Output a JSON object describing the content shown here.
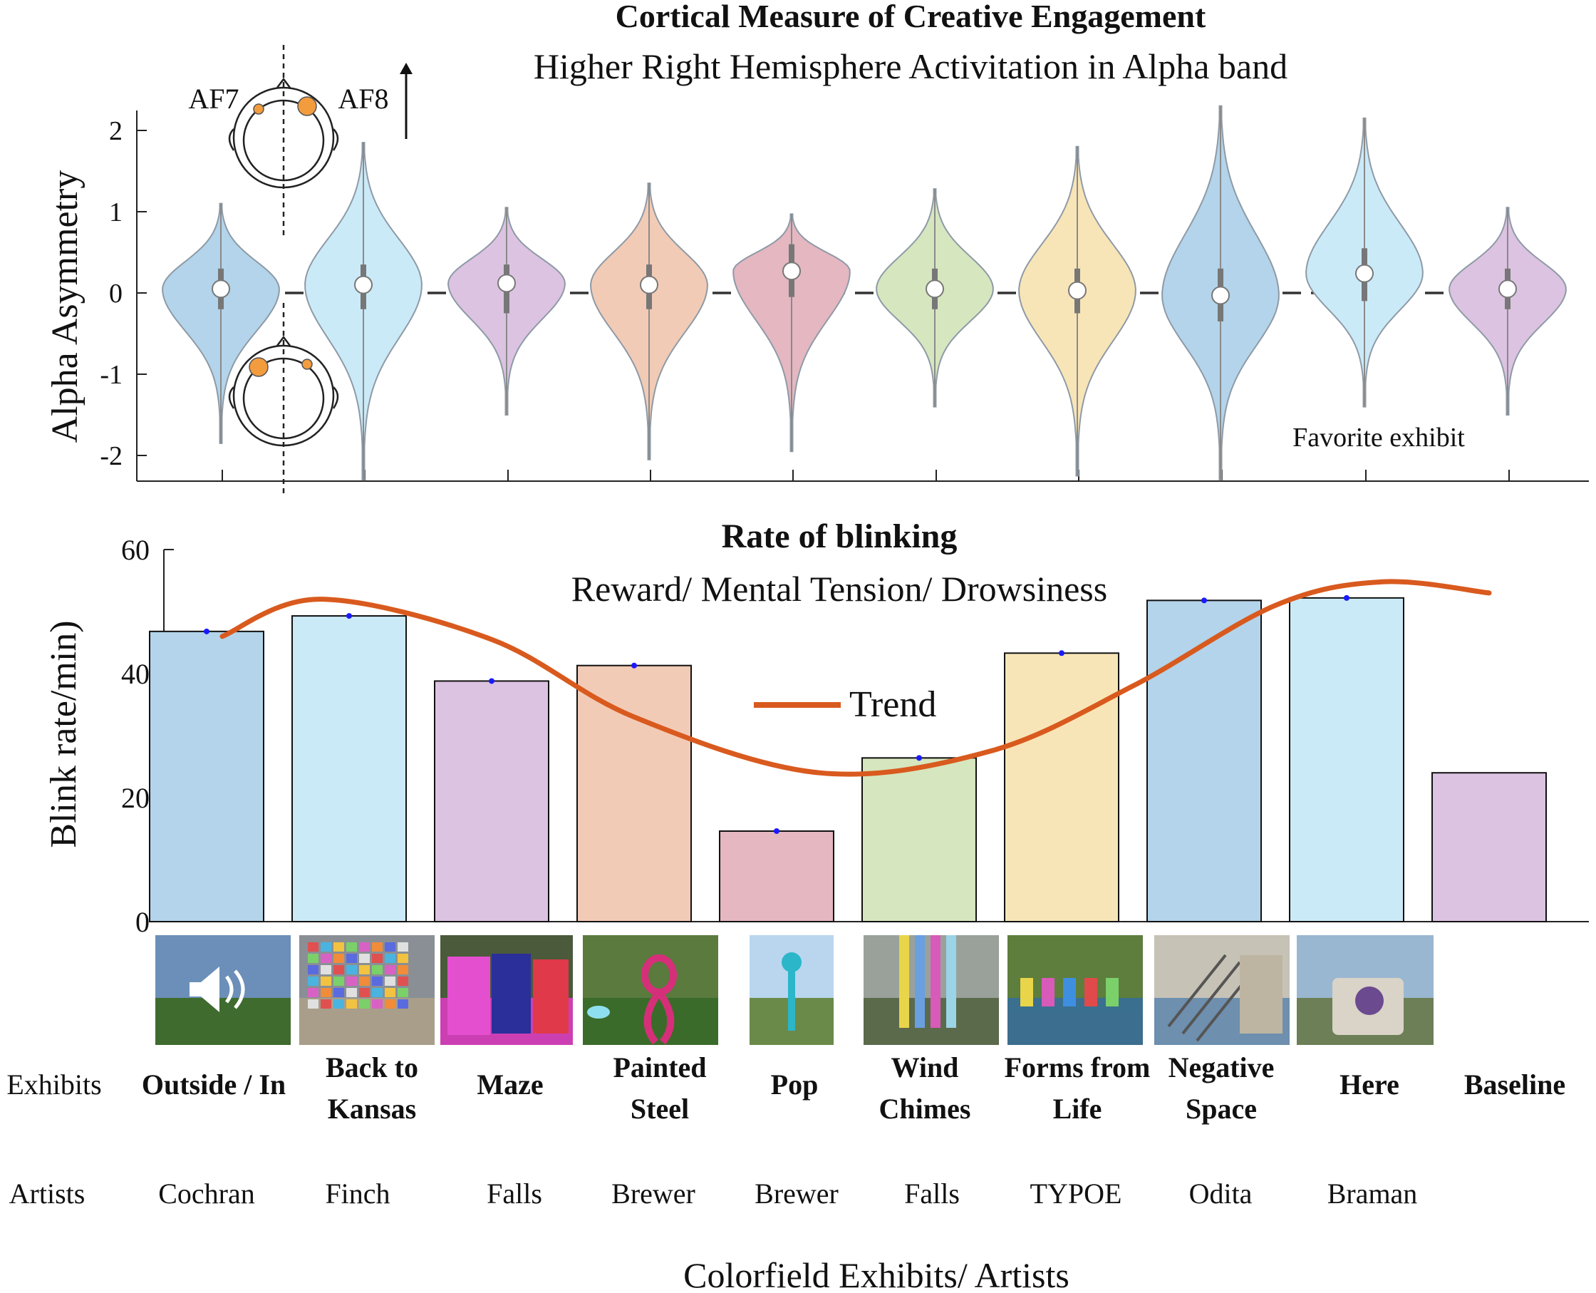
{
  "top_panel": {
    "title": "Cortical Measure of Creative Engagement",
    "subtitle": "Higher Right Hemisphere Activitation in Alpha band",
    "ylabel": "Alpha Asymmetry",
    "annotation": "Favorite exhibit",
    "electrode_left": "AF7",
    "electrode_right": "AF8"
  },
  "bottom_panel": {
    "title": "Rate of blinking",
    "subtitle": "Reward/ Mental Tension/ Drowsiness",
    "ylabel": "Blink rate/min)",
    "legend": "Trend"
  },
  "row_labels": {
    "exhibits": "Exhibits",
    "artists": "Artists"
  },
  "xlabel": "Colorfield Exhibits/ Artists",
  "exhibits": [
    {
      "name_lines": [
        "Outside / In"
      ],
      "artist": "Cochran"
    },
    {
      "name_lines": [
        "Back to",
        "Kansas"
      ],
      "artist": "Finch"
    },
    {
      "name_lines": [
        "Maze"
      ],
      "artist": "Falls"
    },
    {
      "name_lines": [
        "Painted",
        "Steel"
      ],
      "artist": "Brewer"
    },
    {
      "name_lines": [
        "Pop"
      ],
      "artist": "Brewer"
    },
    {
      "name_lines": [
        "Wind",
        "Chimes"
      ],
      "artist": "Falls"
    },
    {
      "name_lines": [
        "Forms from",
        "Life"
      ],
      "artist": "TYPOE"
    },
    {
      "name_lines": [
        "Negative",
        "Space"
      ],
      "artist": "Odita"
    },
    {
      "name_lines": [
        "Here"
      ],
      "artist": "Braman"
    },
    {
      "name_lines": [
        "Baseline"
      ],
      "artist": ""
    }
  ],
  "colors": {
    "blue": "#b3d4ea",
    "lightblue": "#cbeaf8",
    "purple": "#dcc3e1",
    "orange": "#f2cbb6",
    "pink": "#e4b7c1",
    "green": "#d6e6bf",
    "yellow": "#f8e5b7",
    "trend": "#d95a1e",
    "electrode": "#f39c3e"
  },
  "chart_data": [
    {
      "type": "violin",
      "ylabel": "Alpha Asymmetry",
      "ylim": [
        -2.35,
        2.3
      ],
      "yticks": [
        -2,
        -1,
        0,
        1,
        2
      ],
      "reference_line": 0,
      "series": [
        {
          "category": "Outside / In",
          "median": 0.05,
          "q1": -0.2,
          "q3": 0.3,
          "min": -1.85,
          "max": 1.1,
          "color": "blue"
        },
        {
          "category": "Back to Kansas",
          "median": 0.1,
          "q1": -0.2,
          "q3": 0.35,
          "min": -2.3,
          "max": 1.85,
          "color": "lightblue"
        },
        {
          "category": "Maze",
          "median": 0.12,
          "q1": -0.25,
          "q3": 0.35,
          "min": -1.5,
          "max": 1.05,
          "color": "purple"
        },
        {
          "category": "Painted Steel",
          "median": 0.1,
          "q1": -0.2,
          "q3": 0.35,
          "min": -2.05,
          "max": 1.35,
          "color": "orange"
        },
        {
          "category": "Pop",
          "median": 0.27,
          "q1": -0.05,
          "q3": 0.6,
          "min": -1.95,
          "max": 0.97,
          "color": "pink"
        },
        {
          "category": "Wind Chimes",
          "median": 0.05,
          "q1": -0.2,
          "q3": 0.3,
          "min": -1.4,
          "max": 1.28,
          "color": "green"
        },
        {
          "category": "Forms from Life",
          "median": 0.03,
          "q1": -0.25,
          "q3": 0.3,
          "min": -2.25,
          "max": 1.8,
          "color": "yellow"
        },
        {
          "category": "Negative Space",
          "median": -0.03,
          "q1": -0.35,
          "q3": 0.3,
          "min": -2.3,
          "max": 2.3,
          "color": "blue"
        },
        {
          "category": "Here",
          "median": 0.24,
          "q1": -0.1,
          "q3": 0.55,
          "min": -1.4,
          "max": 2.15,
          "color": "lightblue"
        },
        {
          "category": "Baseline",
          "median": 0.05,
          "q1": -0.2,
          "q3": 0.3,
          "min": -1.5,
          "max": 1.05,
          "color": "purple"
        }
      ]
    },
    {
      "type": "bar",
      "ylabel": "Blink rate/min)",
      "ylim": [
        0,
        60
      ],
      "yticks": [
        0,
        20,
        40,
        60
      ],
      "categories": [
        "Outside / In",
        "Back to Kansas",
        "Maze",
        "Painted Steel",
        "Pop",
        "Wind Chimes",
        "Forms from Life",
        "Negative Space",
        "Here",
        "Baseline"
      ],
      "values": [
        46.8,
        49.3,
        38.8,
        41.3,
        14.6,
        26.4,
        43.3,
        51.8,
        52.2,
        24
      ],
      "colors": [
        "blue",
        "lightblue",
        "purple",
        "orange",
        "pink",
        "green",
        "yellow",
        "blue",
        "lightblue",
        "purple"
      ],
      "trend": {
        "name": "Trend",
        "x_index": [
          0,
          0.8,
          2,
          3,
          4.3,
          5.5,
          6.5,
          7.5,
          8.25,
          9
        ],
        "y": [
          46,
          52,
          45.5,
          33,
          24,
          27.5,
          38,
          51,
          54.8,
          53
        ]
      }
    }
  ]
}
